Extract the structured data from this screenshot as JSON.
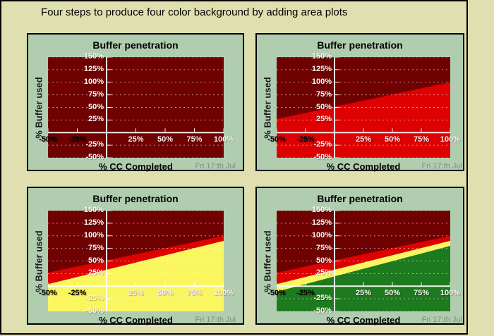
{
  "title": "Four steps to produce four color background by adding area plots",
  "colors": {
    "page_background": "#E0DFAF",
    "panel_background": "#B0CDB0",
    "plot_background_dark_red": "#700101",
    "area_red": "#DD0101",
    "area_yellow": "#FAF660",
    "area_green": "#1E7A1E",
    "grid_line": "rgba(255,255,255,0.55)",
    "axis_line": "rgba(255,255,255,0.92)",
    "y_tick_label": "#FFF4F2",
    "x_tick_label_negative": "#000000",
    "x_tick_label_positive": "#F7EFEF",
    "footer_text": "#7C8F7C",
    "frame_border": "#000000"
  },
  "axis": {
    "x_range": [
      -50,
      100
    ],
    "y_range": [
      -50,
      150
    ],
    "grid": "horizontal-dashed",
    "x_ticks": [
      {
        "value": -50,
        "label": "-50%",
        "color": "#000000"
      },
      {
        "value": -25,
        "label": "-25%",
        "color": "#000000"
      },
      {
        "value": 25,
        "label": "25%",
        "color": "#F7EFEF"
      },
      {
        "value": 50,
        "label": "50%",
        "color": "#F7EFEF"
      },
      {
        "value": 75,
        "label": "75%",
        "color": "#F7EFEF"
      },
      {
        "value": 100,
        "label": "100%",
        "color": "#F7EFEF"
      }
    ],
    "y_ticks": [
      {
        "value": 150,
        "label": "150%"
      },
      {
        "value": 125,
        "label": "125%"
      },
      {
        "value": 100,
        "label": "100%"
      },
      {
        "value": 75,
        "label": "75%"
      },
      {
        "value": 50,
        "label": "50%"
      },
      {
        "value": 25,
        "label": "25%"
      },
      {
        "value": -25,
        "label": "-25%"
      },
      {
        "value": -50,
        "label": "-50%"
      }
    ]
  },
  "chart_data": [
    {
      "type": "area",
      "step": 1,
      "title": "Buffer penetration",
      "xlabel": "% CC Completed",
      "ylabel": "% Buffer used",
      "footer": "Fri 17:th Jul",
      "xlim": [
        -50,
        100
      ],
      "ylim": [
        -50,
        150
      ],
      "background": "#700101",
      "legend_position": "none",
      "series": []
    },
    {
      "type": "area",
      "step": 2,
      "title": "Buffer penetration",
      "xlabel": "% CC Completed",
      "ylabel": "% Buffer used",
      "footer": "Fri 17:th Jul",
      "xlim": [
        -50,
        100
      ],
      "ylim": [
        -50,
        150
      ],
      "background": "#700101",
      "legend_position": "none",
      "series": [
        {
          "name": "red-zone",
          "color": "#DD0101",
          "x": [
            -50,
            100
          ],
          "y": [
            27,
            100
          ],
          "fill": "to-bottom"
        }
      ]
    },
    {
      "type": "area",
      "step": 3,
      "title": "Buffer penetration",
      "xlabel": "% CC Completed",
      "ylabel": "% Buffer used",
      "footer": "Fri 17:th Jul",
      "xlim": [
        -50,
        100
      ],
      "ylim": [
        -50,
        150
      ],
      "background": "#700101",
      "legend_position": "none",
      "series": [
        {
          "name": "red-zone",
          "color": "#DD0101",
          "x": [
            -50,
            100
          ],
          "y": [
            27,
            100
          ],
          "fill": "to-bottom"
        },
        {
          "name": "yellow-zone",
          "color": "#FAF660",
          "x": [
            -50,
            100
          ],
          "y": [
            4,
            90
          ],
          "fill": "to-bottom"
        }
      ]
    },
    {
      "type": "area",
      "step": 4,
      "title": "Buffer penetration",
      "xlabel": "% CC Completed",
      "ylabel": "% Buffer used",
      "footer": "Fri 17:th Jul",
      "xlim": [
        -50,
        100
      ],
      "ylim": [
        -50,
        150
      ],
      "background": "#700101",
      "legend_position": "none",
      "series": [
        {
          "name": "red-zone",
          "color": "#DD0101",
          "x": [
            -50,
            100
          ],
          "y": [
            27,
            100
          ],
          "fill": "to-bottom"
        },
        {
          "name": "yellow-zone",
          "color": "#FAF660",
          "x": [
            -50,
            100
          ],
          "y": [
            4,
            90
          ],
          "fill": "to-bottom"
        },
        {
          "name": "green-zone",
          "color": "#1E7A1E",
          "x": [
            -50,
            100
          ],
          "y": [
            -11,
            80
          ],
          "fill": "to-bottom"
        }
      ]
    }
  ]
}
